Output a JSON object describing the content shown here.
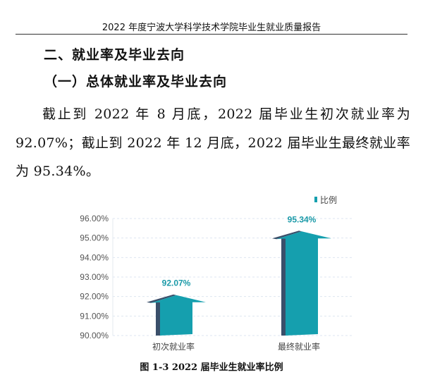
{
  "header": {
    "title": "2022 年度宁波大学科学技术学院毕业生就业质量报告"
  },
  "section": {
    "heading": "二、就业率及毕业去向",
    "subheading": "（一）总体就业率及毕业去向"
  },
  "paragraph": "截止到 2022 年 8 月底，2022 届毕业生初次就业率为 92.07%；截止到 2022 年 12 月底，2022 届毕业生最终就业率为 95.34%。",
  "chart_data": {
    "type": "bar",
    "categories": [
      "初次就业率",
      "最终就业率"
    ],
    "series": [
      {
        "name": "比例",
        "values": [
          92.07,
          95.34
        ]
      }
    ],
    "data_labels": [
      "92.07%",
      "95.34%"
    ],
    "ylim": [
      90,
      96
    ],
    "yticks": [
      "90.00%",
      "91.00%",
      "92.00%",
      "93.00%",
      "94.00%",
      "95.00%",
      "96.00%"
    ],
    "legend": "top-right",
    "grid": true,
    "colors": {
      "bar": "#159fae",
      "shadow": "#3a4f6a",
      "label": "#1a9aa8",
      "grid": "#dde6f0"
    }
  },
  "caption": "图 1-3   2022 届毕业生就业率比例"
}
